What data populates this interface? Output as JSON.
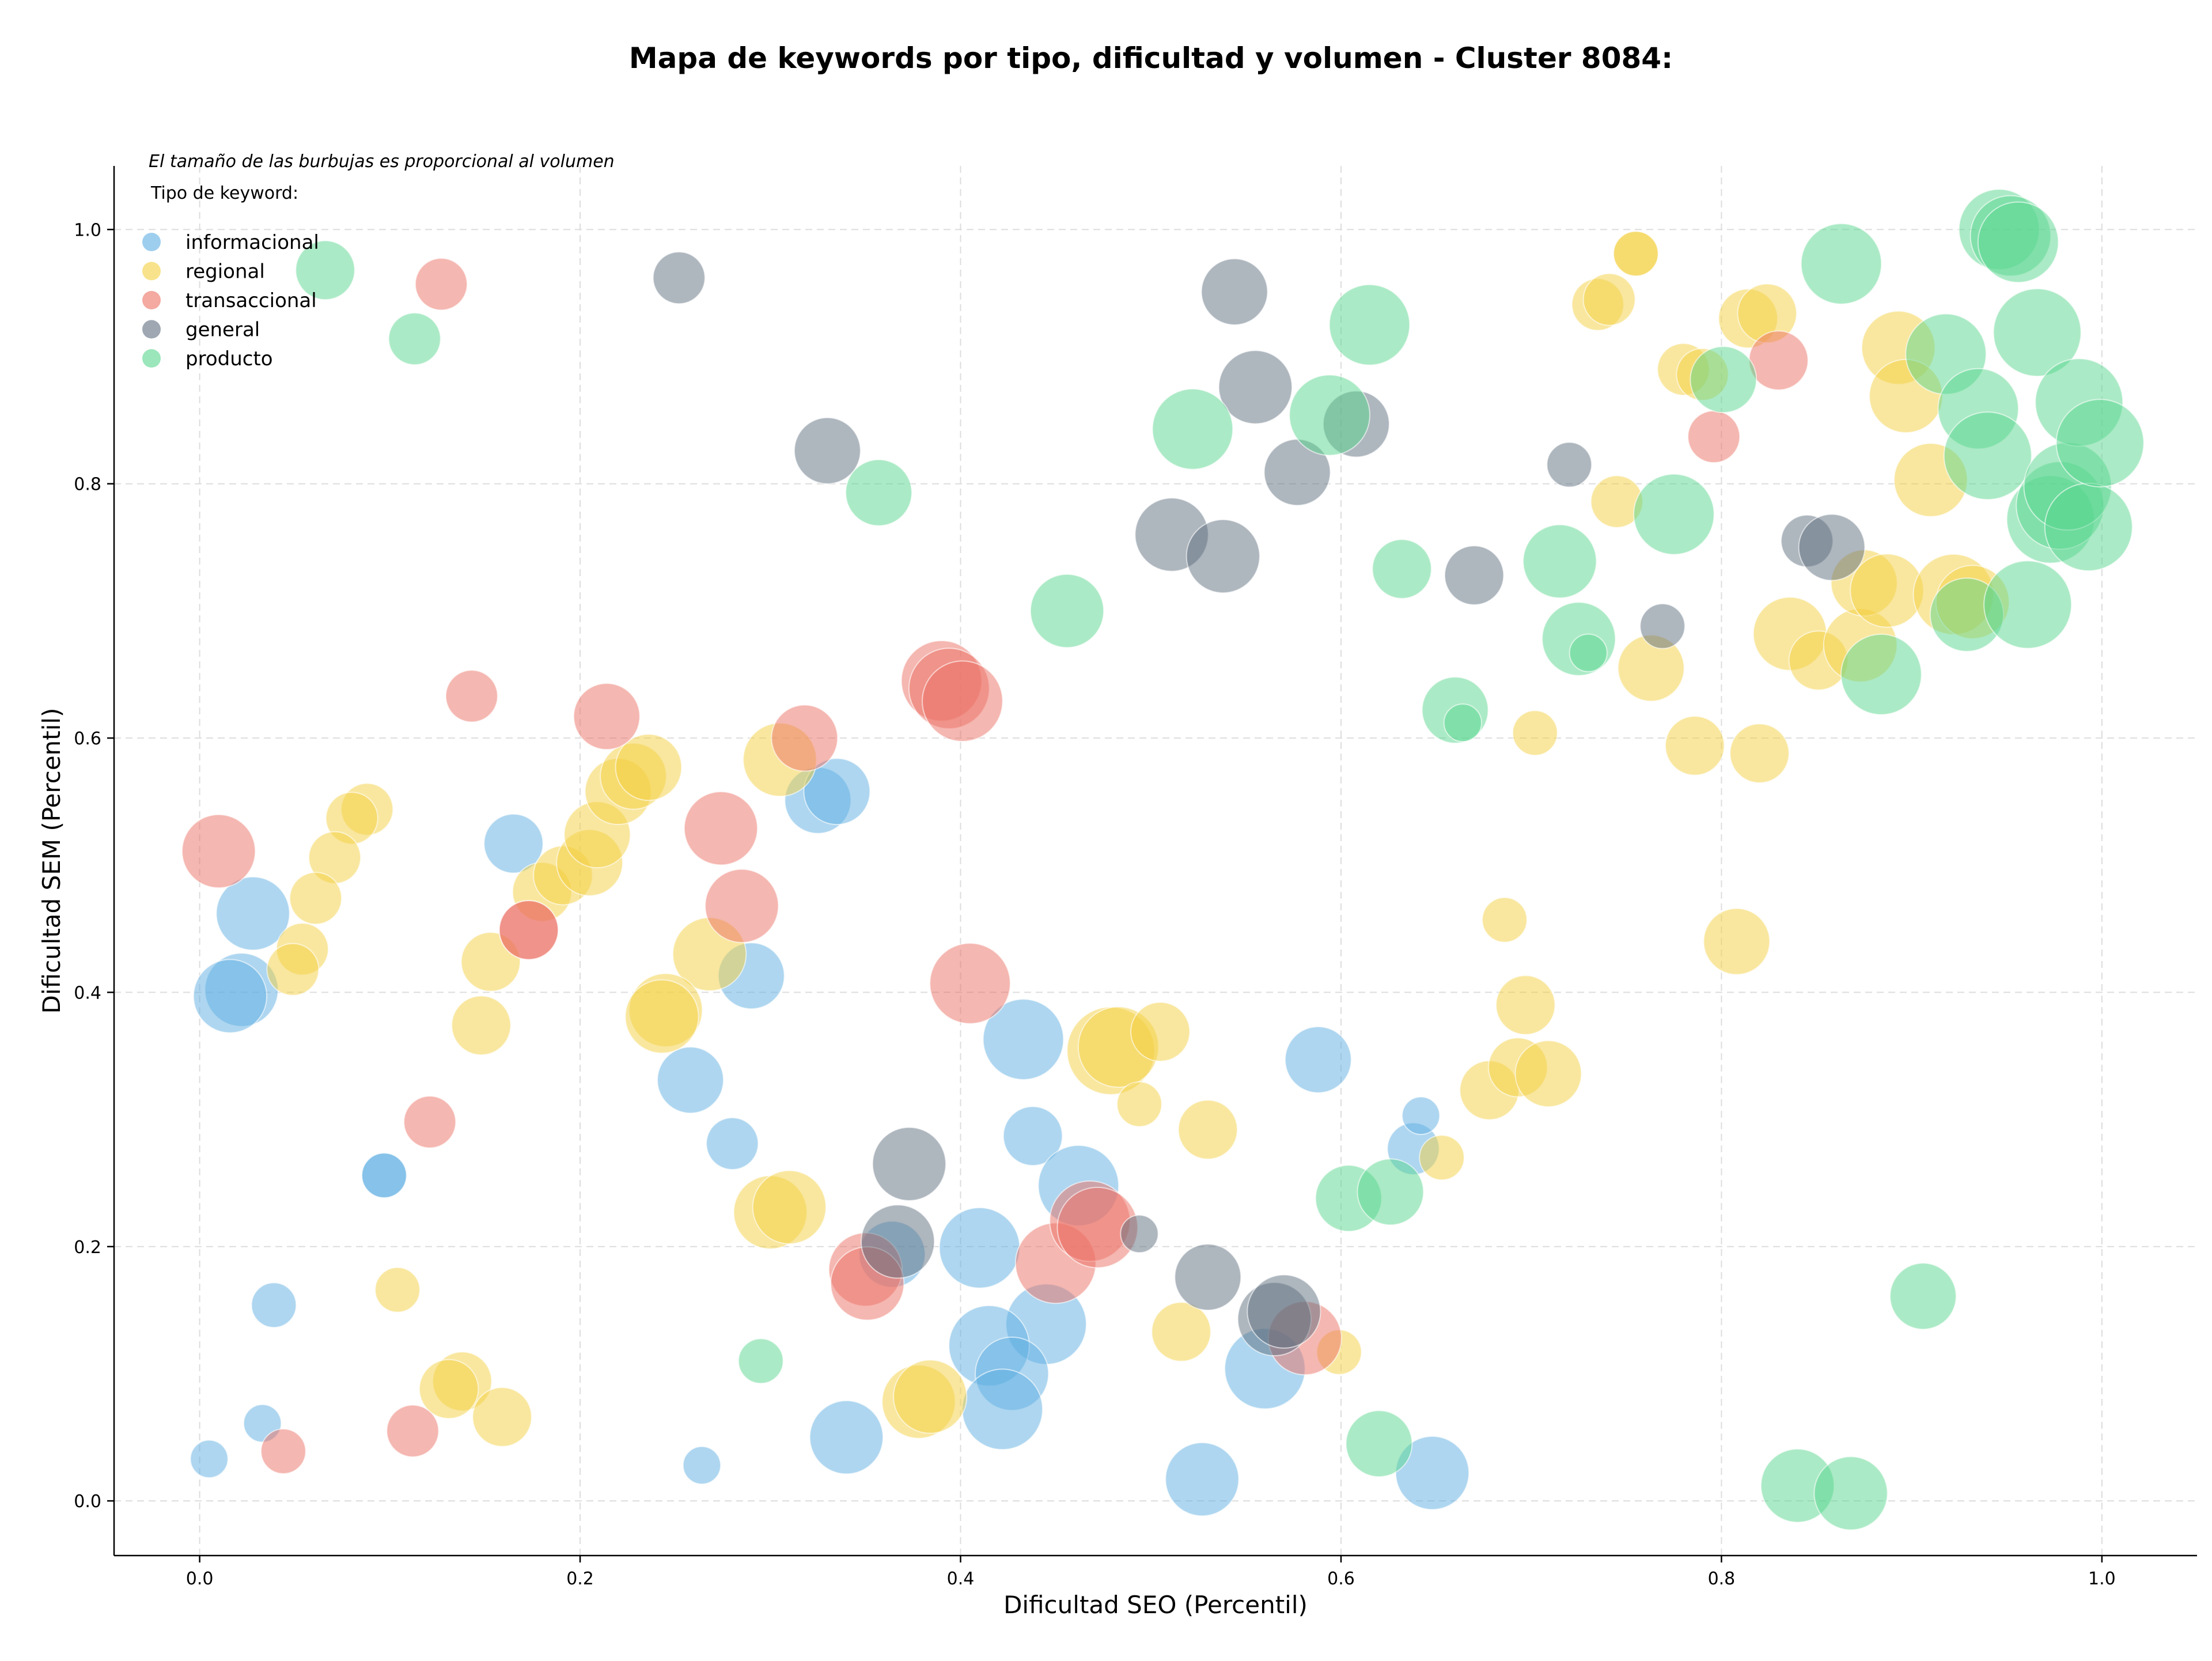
{
  "chart_data": {
    "type": "scatter",
    "title": "Mapa de keywords por tipo, dificultad y volumen - Cluster 8084:",
    "xlabel": "Dificultad SEO (Percentil)",
    "ylabel": "Dificultad SEM (Percentil)",
    "note": "El tamaño de las burbujas es proporcional al volumen",
    "legend_title": "Tipo de keyword:",
    "legend_position": "top-left",
    "grid": true,
    "xlim": [
      -0.045,
      1.05
    ],
    "ylim": [
      -0.043,
      1.05
    ],
    "xticks": [
      "0.0",
      "0.2",
      "0.4",
      "0.6",
      "0.8",
      "1.0"
    ],
    "yticks": [
      "0.0",
      "0.2",
      "0.4",
      "0.6",
      "0.8",
      "1.0"
    ],
    "series": [
      {
        "name": "informacional",
        "color": "#5dade2",
        "points": [
          [
            0.028,
            0.462,
            8
          ],
          [
            0.022,
            0.402,
            8
          ],
          [
            0.016,
            0.397,
            8
          ],
          [
            0.165,
            0.517,
            6
          ],
          [
            0.097,
            0.256,
            4
          ],
          [
            0.097,
            0.256,
            4
          ],
          [
            0.039,
            0.154,
            4
          ],
          [
            0.033,
            0.061,
            3
          ],
          [
            0.005,
            0.033,
            3
          ],
          [
            0.264,
            0.028,
            3
          ],
          [
            0.29,
            0.413,
            7
          ],
          [
            0.258,
            0.331,
            7
          ],
          [
            0.28,
            0.281,
            5
          ],
          [
            0.325,
            0.551,
            7
          ],
          [
            0.335,
            0.558,
            7
          ],
          [
            0.433,
            0.363,
            9
          ],
          [
            0.438,
            0.287,
            6
          ],
          [
            0.462,
            0.248,
            9
          ],
          [
            0.41,
            0.199,
            9
          ],
          [
            0.364,
            0.194,
            7
          ],
          [
            0.445,
            0.139,
            9
          ],
          [
            0.415,
            0.122,
            9
          ],
          [
            0.427,
            0.1,
            8
          ],
          [
            0.422,
            0.072,
            9
          ],
          [
            0.34,
            0.05,
            8
          ],
          [
            0.527,
            0.017,
            8
          ],
          [
            0.56,
            0.104,
            9
          ],
          [
            0.588,
            0.347,
            7
          ],
          [
            0.638,
            0.277,
            5
          ],
          [
            0.642,
            0.303,
            3
          ],
          [
            0.648,
            0.022,
            8
          ]
        ]
      },
      {
        "name": "regional",
        "color": "#f4d03f",
        "points": [
          [
            0.088,
            0.544,
            5
          ],
          [
            0.08,
            0.537,
            5
          ],
          [
            0.071,
            0.506,
            5
          ],
          [
            0.061,
            0.474,
            5
          ],
          [
            0.054,
            0.434,
            5
          ],
          [
            0.049,
            0.418,
            5
          ],
          [
            0.153,
            0.424,
            6
          ],
          [
            0.148,
            0.374,
            6
          ],
          [
            0.18,
            0.479,
            6
          ],
          [
            0.191,
            0.492,
            6
          ],
          [
            0.205,
            0.502,
            7
          ],
          [
            0.209,
            0.524,
            7
          ],
          [
            0.22,
            0.558,
            7
          ],
          [
            0.228,
            0.57,
            7
          ],
          [
            0.236,
            0.577,
            7
          ],
          [
            0.305,
            0.583,
            8
          ],
          [
            0.268,
            0.43,
            8
          ],
          [
            0.245,
            0.386,
            8
          ],
          [
            0.243,
            0.381,
            8
          ],
          [
            0.3,
            0.227,
            8
          ],
          [
            0.31,
            0.231,
            8
          ],
          [
            0.104,
            0.166,
            4
          ],
          [
            0.138,
            0.094,
            6
          ],
          [
            0.131,
            0.088,
            6
          ],
          [
            0.159,
            0.066,
            6
          ],
          [
            0.378,
            0.078,
            8
          ],
          [
            0.384,
            0.082,
            8
          ],
          [
            0.479,
            0.354,
            10
          ],
          [
            0.483,
            0.357,
            9
          ],
          [
            0.505,
            0.369,
            6
          ],
          [
            0.494,
            0.312,
            4
          ],
          [
            0.53,
            0.292,
            6
          ],
          [
            0.516,
            0.133,
            6
          ],
          [
            0.599,
            0.117,
            4
          ],
          [
            0.653,
            0.27,
            4
          ],
          [
            0.678,
            0.323,
            6
          ],
          [
            0.693,
            0.341,
            6
          ],
          [
            0.709,
            0.336,
            7
          ],
          [
            0.697,
            0.39,
            6
          ],
          [
            0.686,
            0.457,
            4
          ],
          [
            0.702,
            0.604,
            4
          ],
          [
            0.808,
            0.44,
            7
          ],
          [
            0.786,
            0.594,
            6
          ],
          [
            0.82,
            0.588,
            6
          ],
          [
            0.745,
            0.786,
            5
          ],
          [
            0.763,
            0.655,
            7
          ],
          [
            0.735,
            0.941,
            5
          ],
          [
            0.741,
            0.945,
            5
          ],
          [
            0.755,
            0.981,
            4
          ],
          [
            0.755,
            0.981,
            4
          ],
          [
            0.78,
            0.89,
            5
          ],
          [
            0.79,
            0.886,
            5
          ],
          [
            0.814,
            0.93,
            6
          ],
          [
            0.824,
            0.934,
            6
          ],
          [
            0.836,
            0.682,
            8
          ],
          [
            0.851,
            0.661,
            6
          ],
          [
            0.873,
            0.673,
            8
          ],
          [
            0.875,
            0.722,
            7
          ],
          [
            0.887,
            0.716,
            8
          ],
          [
            0.893,
            0.907,
            8
          ],
          [
            0.897,
            0.869,
            8
          ],
          [
            0.91,
            0.803,
            8
          ],
          [
            0.922,
            0.713,
            9
          ],
          [
            0.932,
            0.707,
            8
          ]
        ]
      },
      {
        "name": "transaccional",
        "color": "#ec7063",
        "points": [
          [
            0.01,
            0.511,
            8
          ],
          [
            0.044,
            0.039,
            4
          ],
          [
            0.112,
            0.055,
            5
          ],
          [
            0.121,
            0.298,
            5
          ],
          [
            0.127,
            0.957,
            5
          ],
          [
            0.143,
            0.633,
            5
          ],
          [
            0.173,
            0.449,
            6
          ],
          [
            0.173,
            0.449,
            6
          ],
          [
            0.214,
            0.617,
            7
          ],
          [
            0.274,
            0.529,
            8
          ],
          [
            0.285,
            0.468,
            8
          ],
          [
            0.318,
            0.6,
            7
          ],
          [
            0.39,
            0.645,
            9
          ],
          [
            0.394,
            0.639,
            9
          ],
          [
            0.401,
            0.629,
            9
          ],
          [
            0.405,
            0.407,
            9
          ],
          [
            0.35,
            0.182,
            8
          ],
          [
            0.351,
            0.171,
            8
          ],
          [
            0.45,
            0.187,
            9
          ],
          [
            0.468,
            0.22,
            9
          ],
          [
            0.472,
            0.215,
            9
          ],
          [
            0.581,
            0.128,
            8
          ],
          [
            0.796,
            0.837,
            5
          ],
          [
            0.83,
            0.897,
            6
          ]
        ]
      },
      {
        "name": "general",
        "color": "#5d6d7e",
        "points": [
          [
            0.252,
            0.962,
            5
          ],
          [
            0.33,
            0.826,
            7
          ],
          [
            0.373,
            0.265,
            8
          ],
          [
            0.367,
            0.204,
            8
          ],
          [
            0.494,
            0.21,
            3
          ],
          [
            0.511,
            0.76,
            8
          ],
          [
            0.538,
            0.743,
            8
          ],
          [
            0.544,
            0.951,
            7
          ],
          [
            0.555,
            0.876,
            8
          ],
          [
            0.577,
            0.809,
            7
          ],
          [
            0.53,
            0.176,
            7
          ],
          [
            0.565,
            0.143,
            8
          ],
          [
            0.57,
            0.149,
            8
          ],
          [
            0.608,
            0.847,
            7
          ],
          [
            0.67,
            0.728,
            6
          ],
          [
            0.72,
            0.815,
            4
          ],
          [
            0.769,
            0.688,
            4
          ],
          [
            0.845,
            0.755,
            5
          ],
          [
            0.858,
            0.75,
            7
          ]
        ]
      },
      {
        "name": "producto",
        "color": "#58d68d",
        "points": [
          [
            0.066,
            0.968,
            6
          ],
          [
            0.113,
            0.914,
            5
          ],
          [
            0.357,
            0.793,
            7
          ],
          [
            0.295,
            0.11,
            4
          ],
          [
            0.456,
            0.7,
            8
          ],
          [
            0.522,
            0.843,
            9
          ],
          [
            0.594,
            0.854,
            9
          ],
          [
            0.615,
            0.925,
            9
          ],
          [
            0.632,
            0.733,
            6
          ],
          [
            0.604,
            0.238,
            7
          ],
          [
            0.626,
            0.243,
            7
          ],
          [
            0.62,
            0.045,
            7
          ],
          [
            0.66,
            0.622,
            7
          ],
          [
            0.664,
            0.612,
            3
          ],
          [
            0.715,
            0.739,
            8
          ],
          [
            0.725,
            0.678,
            8
          ],
          [
            0.73,
            0.667,
            3
          ],
          [
            0.775,
            0.776,
            9
          ],
          [
            0.801,
            0.882,
            7
          ],
          [
            0.84,
            0.012,
            8
          ],
          [
            0.868,
            0.006,
            8
          ],
          [
            0.863,
            0.973,
            9
          ],
          [
            0.884,
            0.65,
            9
          ],
          [
            0.906,
            0.161,
            7
          ],
          [
            0.918,
            0.902,
            9
          ],
          [
            0.929,
            0.697,
            8
          ],
          [
            0.935,
            0.859,
            9
          ],
          [
            0.94,
            0.822,
            10
          ],
          [
            0.946,
            1.0,
            9
          ],
          [
            0.952,
            0.995,
            9
          ],
          [
            0.956,
            0.99,
            9
          ],
          [
            0.961,
            0.705,
            10
          ],
          [
            0.966,
            0.919,
            10
          ],
          [
            0.973,
            0.772,
            10
          ],
          [
            0.978,
            0.783,
            10
          ],
          [
            0.982,
            0.798,
            10
          ],
          [
            0.988,
            0.864,
            10
          ],
          [
            0.993,
            0.766,
            10
          ],
          [
            0.999,
            0.832,
            10
          ]
        ]
      }
    ]
  }
}
